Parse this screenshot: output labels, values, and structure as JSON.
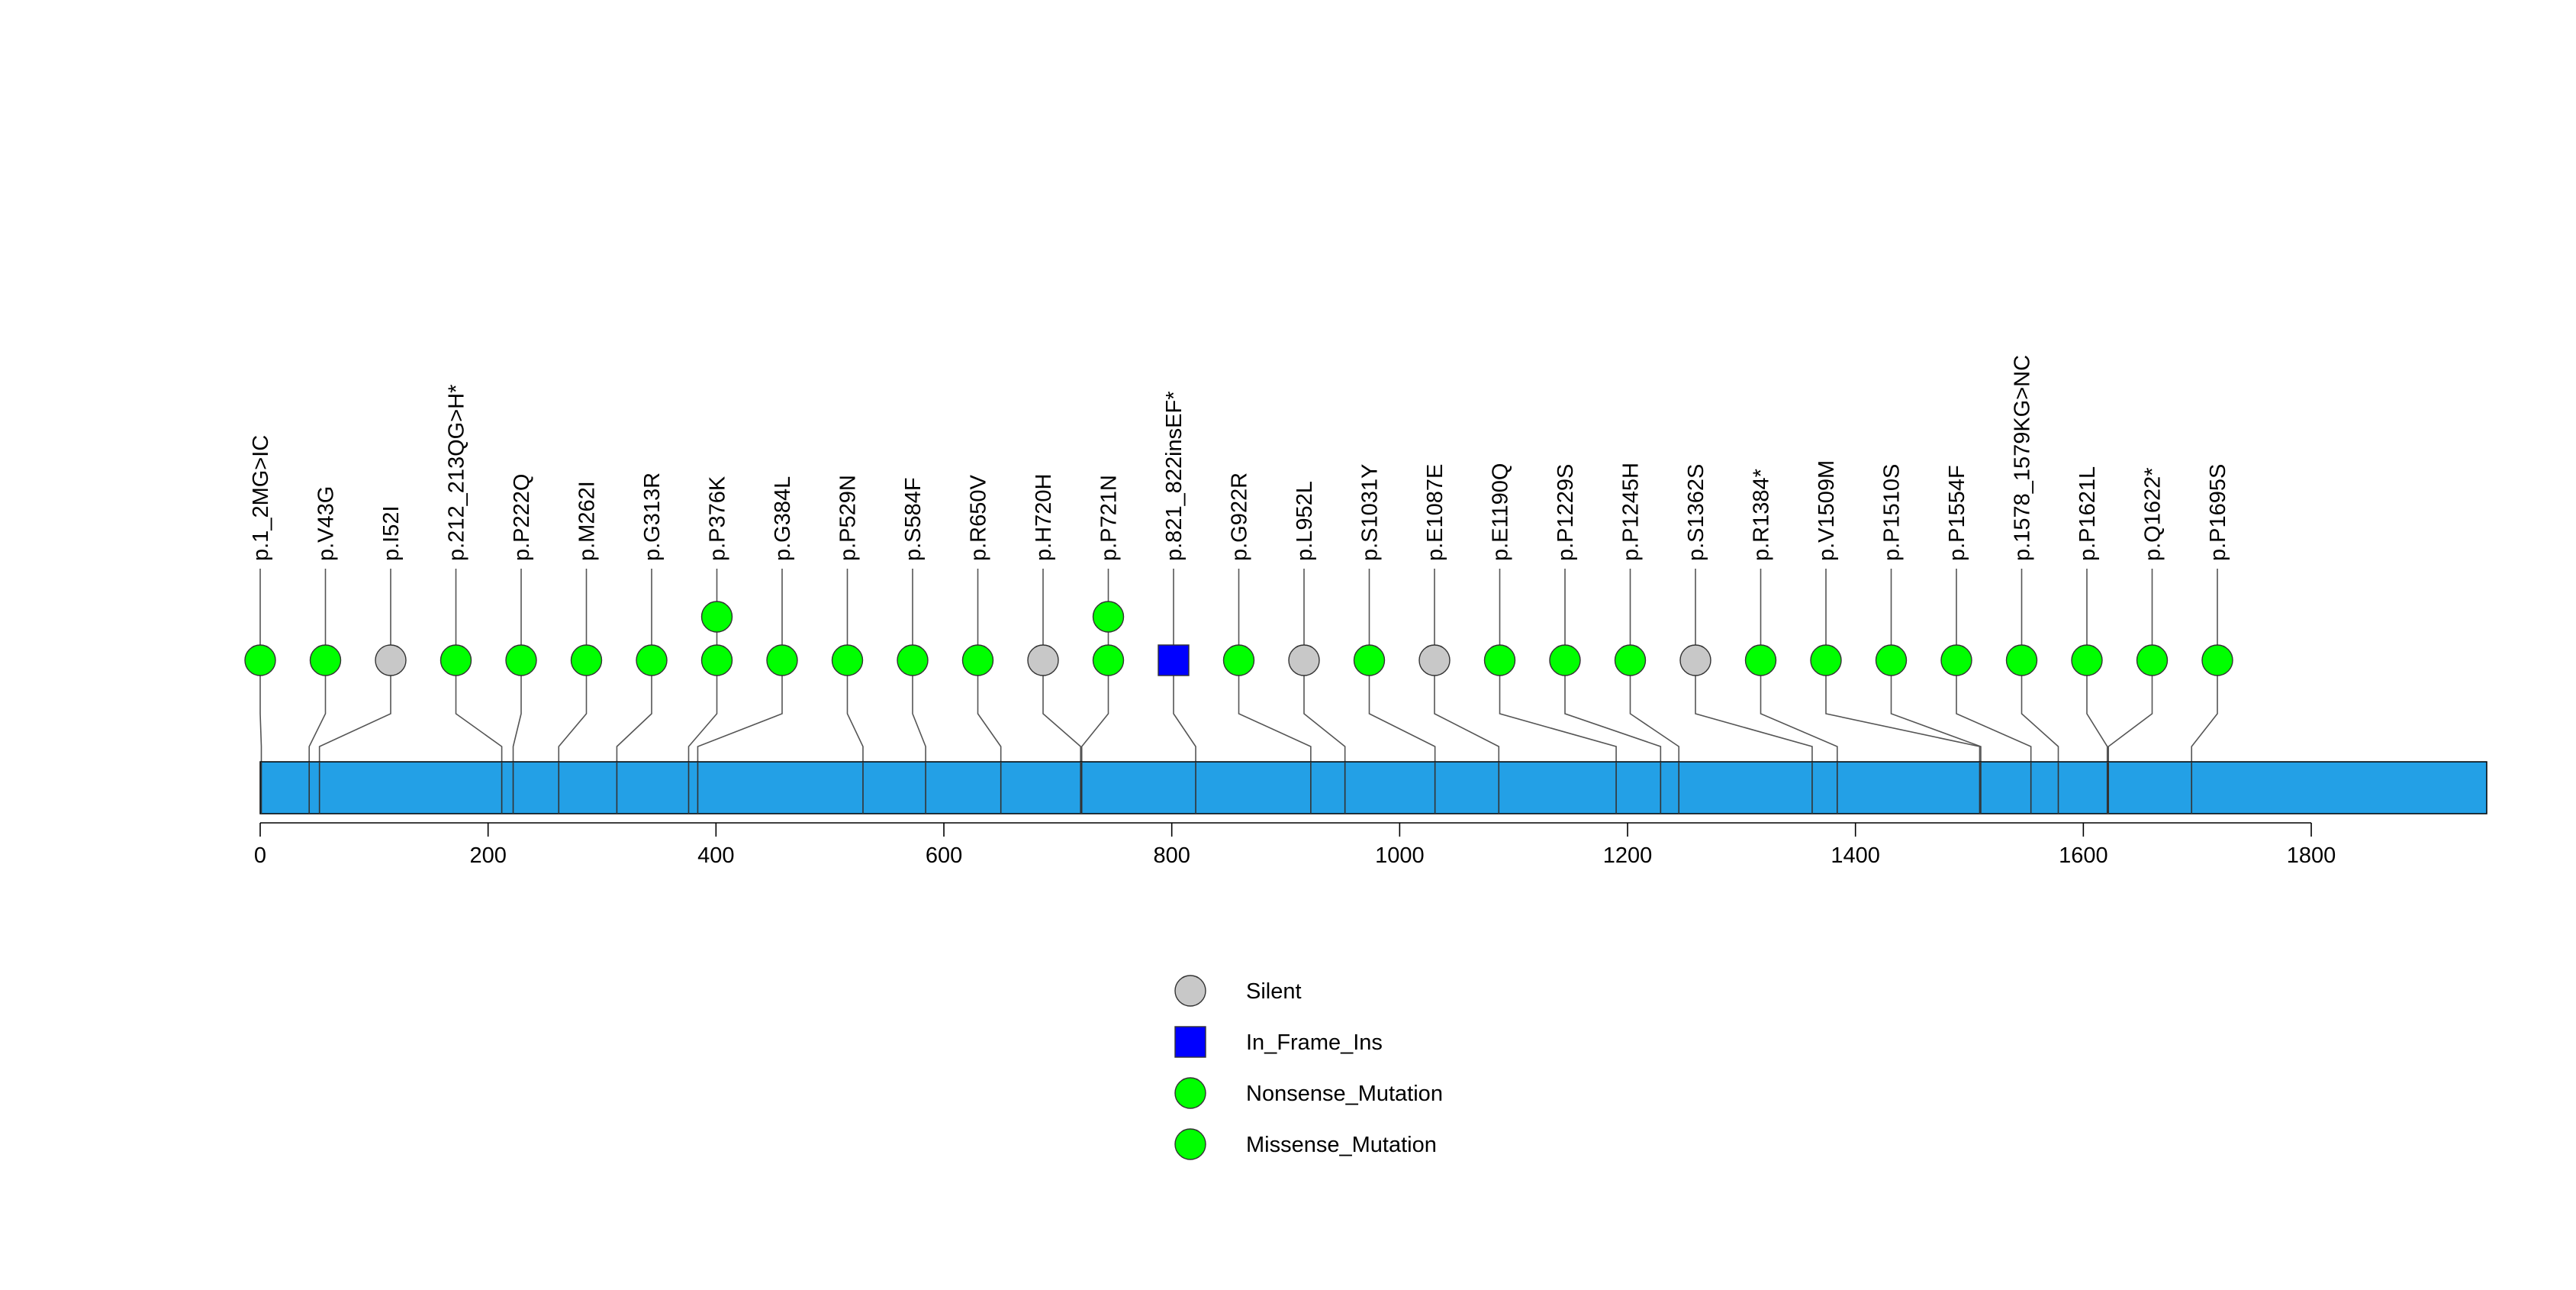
{
  "chart_data": {
    "type": "lollipop",
    "title": "",
    "xlabel": "",
    "ylabel": "",
    "xlim": [
      0,
      1954
    ],
    "x_ticks": [
      0,
      200,
      400,
      600,
      800,
      1000,
      1200,
      1400,
      1600,
      1800
    ],
    "protein_bar_color": "#23A0E6",
    "mutation_types": {
      "Silent": {
        "color": "#C8C8C8",
        "shape": "circle"
      },
      "In_Frame_Ins": {
        "color": "#0000FF",
        "shape": "square"
      },
      "Nonsense_Mutation": {
        "color": "#00FF00",
        "shape": "circle"
      },
      "Missense_Mutation": {
        "color": "#00FF00",
        "shape": "circle"
      }
    },
    "legend": [
      "Silent",
      "In_Frame_Ins",
      "Nonsense_Mutation",
      "Missense_Mutation"
    ],
    "mutations": [
      {
        "label": "p.1_2MG>IC",
        "position": 1,
        "count": 1,
        "type": "Missense_Mutation"
      },
      {
        "label": "p.V43G",
        "position": 43,
        "count": 1,
        "type": "Missense_Mutation"
      },
      {
        "label": "p.I52I",
        "position": 52,
        "count": 1,
        "type": "Silent"
      },
      {
        "label": "p.212_213QG>H*",
        "position": 212,
        "count": 1,
        "type": "Nonsense_Mutation"
      },
      {
        "label": "p.P222Q",
        "position": 222,
        "count": 1,
        "type": "Missense_Mutation"
      },
      {
        "label": "p.M262I",
        "position": 262,
        "count": 1,
        "type": "Missense_Mutation"
      },
      {
        "label": "p.G313R",
        "position": 313,
        "count": 1,
        "type": "Missense_Mutation"
      },
      {
        "label": "p.P376K",
        "position": 376,
        "count": 2,
        "type": "Missense_Mutation"
      },
      {
        "label": "p.G384L",
        "position": 384,
        "count": 1,
        "type": "Missense_Mutation"
      },
      {
        "label": "p.P529N",
        "position": 529,
        "count": 1,
        "type": "Missense_Mutation"
      },
      {
        "label": "p.S584F",
        "position": 584,
        "count": 1,
        "type": "Missense_Mutation"
      },
      {
        "label": "p.R650V",
        "position": 650,
        "count": 1,
        "type": "Missense_Mutation"
      },
      {
        "label": "p.H720H",
        "position": 720,
        "count": 1,
        "type": "Silent"
      },
      {
        "label": "p.P721N",
        "position": 721,
        "count": 2,
        "type": "Missense_Mutation"
      },
      {
        "label": "p.821_822insEF*",
        "position": 821,
        "count": 1,
        "type": "In_Frame_Ins"
      },
      {
        "label": "p.G922R",
        "position": 922,
        "count": 1,
        "type": "Missense_Mutation"
      },
      {
        "label": "p.L952L",
        "position": 952,
        "count": 1,
        "type": "Silent"
      },
      {
        "label": "p.S1031Y",
        "position": 1031,
        "count": 1,
        "type": "Missense_Mutation"
      },
      {
        "label": "p.E1087E",
        "position": 1087,
        "count": 1,
        "type": "Silent"
      },
      {
        "label": "p.E1190Q",
        "position": 1190,
        "count": 1,
        "type": "Missense_Mutation"
      },
      {
        "label": "p.P1229S",
        "position": 1229,
        "count": 1,
        "type": "Missense_Mutation"
      },
      {
        "label": "p.P1245H",
        "position": 1245,
        "count": 1,
        "type": "Missense_Mutation"
      },
      {
        "label": "p.S1362S",
        "position": 1362,
        "count": 1,
        "type": "Silent"
      },
      {
        "label": "p.R1384*",
        "position": 1384,
        "count": 1,
        "type": "Nonsense_Mutation"
      },
      {
        "label": "p.V1509M",
        "position": 1509,
        "count": 1,
        "type": "Missense_Mutation"
      },
      {
        "label": "p.P1510S",
        "position": 1510,
        "count": 1,
        "type": "Missense_Mutation"
      },
      {
        "label": "p.P1554F",
        "position": 1554,
        "count": 1,
        "type": "Missense_Mutation"
      },
      {
        "label": "p.1578_1579KG>NC",
        "position": 1578,
        "count": 1,
        "type": "Missense_Mutation"
      },
      {
        "label": "p.P1621L",
        "position": 1621,
        "count": 1,
        "type": "Missense_Mutation"
      },
      {
        "label": "p.Q1622*",
        "position": 1622,
        "count": 1,
        "type": "Nonsense_Mutation"
      },
      {
        "label": "p.P1695S",
        "position": 1695,
        "count": 1,
        "type": "Missense_Mutation"
      }
    ]
  }
}
